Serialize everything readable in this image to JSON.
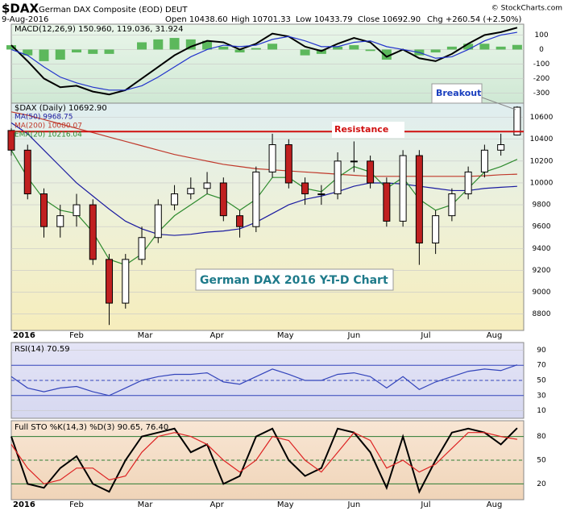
{
  "header": {
    "symbol": "$DAX",
    "name": "German DAX Composite (EOD) DEUT",
    "date": "9-Aug-2016",
    "quote": [
      "Open 10438.60",
      "High 10701.33",
      "Low 10433.79",
      "Close 10692.90",
      "Chg +260.54 (+2.50%)"
    ],
    "credit": "© StockCharts.com"
  },
  "chart_data": [
    {
      "type": "macd",
      "legend": "MACD(12,26,9) 150.960, 119.036, 31.924",
      "x": [
        0,
        5,
        10,
        15,
        20,
        25,
        30,
        35,
        40,
        45,
        50,
        55,
        60,
        65,
        70,
        75,
        80,
        85,
        90,
        95,
        100,
        105,
        110,
        115,
        120,
        125,
        130,
        135,
        140,
        145,
        150,
        155
      ],
      "xlim": [
        0,
        157
      ],
      "ylim": [
        -370,
        175
      ],
      "yticks": [
        100,
        0,
        -100,
        -200,
        -300
      ],
      "series": [
        {
          "kind": "bar",
          "color": "#5cb85c",
          "values": [
            30,
            -40,
            -80,
            -70,
            -20,
            -30,
            -30,
            0,
            50,
            70,
            80,
            70,
            60,
            20,
            -20,
            10,
            40,
            0,
            -40,
            -30,
            20,
            30,
            -10,
            -70,
            0,
            -40,
            -20,
            20,
            40,
            40,
            20,
            31.924
          ]
        },
        {
          "kind": "line",
          "color": "#000000",
          "values": [
            30,
            -80,
            -200,
            -260,
            -250,
            -290,
            -310,
            -280,
            -200,
            -120,
            -40,
            20,
            60,
            50,
            0,
            40,
            110,
            90,
            20,
            -10,
            40,
            80,
            50,
            -50,
            0,
            -60,
            -80,
            -30,
            40,
            100,
            120,
            150.96
          ]
        },
        {
          "kind": "line",
          "color": "#2233cc",
          "values": [
            0,
            -40,
            -120,
            -190,
            -230,
            -260,
            -280,
            -280,
            -250,
            -190,
            -120,
            -50,
            0,
            30,
            20,
            30,
            70,
            90,
            60,
            20,
            20,
            50,
            60,
            20,
            0,
            -20,
            -60,
            -50,
            0,
            60,
            100,
            119.036
          ]
        }
      ]
    },
    {
      "type": "candlestick",
      "legend": "$DAX (Daily) 10692.90",
      "x": [
        0,
        5,
        10,
        15,
        20,
        25,
        30,
        35,
        40,
        45,
        50,
        55,
        60,
        65,
        70,
        75,
        80,
        85,
        90,
        95,
        100,
        105,
        110,
        115,
        120,
        125,
        130,
        135,
        140,
        145,
        150,
        155
      ],
      "xlim": [
        0,
        157
      ],
      "ylim": [
        8650,
        10730
      ],
      "yticks": [
        8800,
        9000,
        9200,
        9400,
        9600,
        9800,
        10000,
        10200,
        10400,
        10600
      ],
      "xticks": [
        {
          "value": 0,
          "label": "2016"
        },
        {
          "value": 20,
          "label": "Feb"
        },
        {
          "value": 41,
          "label": "Mar"
        },
        {
          "value": 63,
          "label": "Apr"
        },
        {
          "value": 84,
          "label": "May"
        },
        {
          "value": 105,
          "label": "Jun"
        },
        {
          "value": 127,
          "label": "Jul"
        },
        {
          "value": 148,
          "label": "Aug"
        }
      ],
      "open": [
        10480,
        10300,
        9900,
        9600,
        9700,
        9800,
        9300,
        8900,
        9300,
        9500,
        9800,
        9900,
        9950,
        10000,
        9700,
        9600,
        10100,
        10350,
        10000,
        9900,
        9900,
        10200,
        10200,
        10000,
        9650,
        10250,
        9450,
        9700,
        9900,
        10100,
        10300,
        10438.6
      ],
      "high": [
        10500,
        10350,
        9950,
        9800,
        9900,
        9850,
        9350,
        9350,
        9600,
        9850,
        9980,
        10050,
        10100,
        10050,
        9750,
        10150,
        10450,
        10400,
        10050,
        9980,
        10280,
        10380,
        10250,
        10050,
        10300,
        10300,
        9750,
        9950,
        10150,
        10350,
        10450,
        10701.33
      ],
      "low": [
        10250,
        9850,
        9500,
        9500,
        9600,
        9250,
        8700,
        8850,
        9250,
        9450,
        9750,
        9850,
        9900,
        9650,
        9500,
        9550,
        10050,
        9950,
        9800,
        9800,
        9850,
        10100,
        9950,
        9600,
        9600,
        9250,
        9350,
        9650,
        9850,
        10050,
        10250,
        10433.79
      ],
      "close": [
        10300,
        9900,
        9600,
        9700,
        9800,
        9300,
        8900,
        9300,
        9500,
        9800,
        9900,
        9950,
        10000,
        9700,
        9600,
        10100,
        10350,
        10000,
        9900,
        9900,
        10200,
        10200,
        10000,
        9650,
        10250,
        9450,
        9700,
        9900,
        10100,
        10300,
        10350,
        10692.9
      ],
      "series": [
        {
          "legend": "MA(50) 9968.75",
          "color": "#1a1aa0",
          "values": [
            10550,
            10450,
            10300,
            10150,
            10000,
            9880,
            9760,
            9650,
            9580,
            9530,
            9520,
            9530,
            9550,
            9560,
            9580,
            9640,
            9720,
            9800,
            9850,
            9880,
            9920,
            9970,
            10000,
            10000,
            9990,
            9970,
            9950,
            9930,
            9930,
            9950,
            9960,
            9968.75
          ]
        },
        {
          "legend": "MA(200) 10080.07",
          "color": "#c0392b",
          "values": [
            10650,
            10620,
            10580,
            10540,
            10500,
            10460,
            10420,
            10380,
            10340,
            10300,
            10260,
            10230,
            10200,
            10170,
            10150,
            10130,
            10120,
            10110,
            10100,
            10090,
            10080,
            10070,
            10060,
            10060,
            10060,
            10060,
            10060,
            10060,
            10060,
            10065,
            10075,
            10080.07
          ]
        },
        {
          "legend": "EMA(20) 10216.04",
          "color": "#2e8b2e",
          "values": [
            10300,
            10050,
            9850,
            9750,
            9720,
            9550,
            9300,
            9250,
            9350,
            9550,
            9700,
            9800,
            9900,
            9850,
            9750,
            9850,
            10050,
            10050,
            9950,
            9920,
            10050,
            10150,
            10100,
            9950,
            10050,
            9850,
            9750,
            9800,
            9950,
            10100,
            10150,
            10216.04
          ]
        }
      ],
      "resistance": {
        "label": "Resistance",
        "value": 10470
      },
      "annotations": [
        "Breakout",
        "German DAX 2016 Y-T-D Chart"
      ]
    },
    {
      "type": "line",
      "legend": "RSI(14) 70.59",
      "x": [
        0,
        5,
        10,
        15,
        20,
        25,
        30,
        35,
        40,
        45,
        50,
        55,
        60,
        65,
        70,
        75,
        80,
        85,
        90,
        95,
        100,
        105,
        110,
        115,
        120,
        125,
        130,
        135,
        140,
        145,
        150,
        155
      ],
      "xlim": [
        0,
        157
      ],
      "ylim": [
        0,
        100
      ],
      "yticks": [
        90,
        70,
        50,
        30,
        10
      ],
      "levels": [
        70,
        50,
        30
      ],
      "series": [
        {
          "color": "#3344bb",
          "values": [
            55,
            40,
            35,
            40,
            42,
            35,
            30,
            40,
            50,
            55,
            58,
            58,
            60,
            48,
            45,
            55,
            65,
            58,
            50,
            50,
            58,
            60,
            55,
            40,
            55,
            38,
            48,
            55,
            62,
            65,
            63,
            70.59
          ]
        }
      ]
    },
    {
      "type": "line",
      "legend": "Full STO %K(14,3) %D(3) 90.65, 76.40",
      "x": [
        0,
        5,
        10,
        15,
        20,
        25,
        30,
        35,
        40,
        45,
        50,
        55,
        60,
        65,
        70,
        75,
        80,
        85,
        90,
        95,
        100,
        105,
        110,
        115,
        120,
        125,
        130,
        135,
        140,
        145,
        150,
        155
      ],
      "xlim": [
        0,
        157
      ],
      "ylim": [
        0,
        100
      ],
      "yticks": [
        80,
        50,
        20
      ],
      "levels": [
        80,
        50,
        20
      ],
      "xticks": [
        {
          "value": 0,
          "label": "2016"
        },
        {
          "value": 20,
          "label": "Feb"
        },
        {
          "value": 41,
          "label": "Mar"
        },
        {
          "value": 63,
          "label": "Apr"
        },
        {
          "value": 84,
          "label": "May"
        },
        {
          "value": 105,
          "label": "Jun"
        },
        {
          "value": 127,
          "label": "Jul"
        },
        {
          "value": 148,
          "label": "Aug"
        }
      ],
      "series": [
        {
          "color": "#000000",
          "values": [
            80,
            20,
            15,
            40,
            55,
            20,
            10,
            50,
            80,
            85,
            90,
            60,
            70,
            20,
            30,
            80,
            90,
            50,
            30,
            40,
            90,
            85,
            60,
            15,
            80,
            10,
            50,
            85,
            90,
            85,
            70,
            90.65
          ]
        },
        {
          "color": "#dd2222",
          "values": [
            70,
            40,
            20,
            25,
            40,
            40,
            25,
            30,
            60,
            80,
            85,
            80,
            70,
            50,
            35,
            50,
            80,
            75,
            50,
            35,
            60,
            85,
            75,
            40,
            50,
            35,
            45,
            65,
            85,
            85,
            80,
            76.4
          ]
        }
      ]
    }
  ]
}
